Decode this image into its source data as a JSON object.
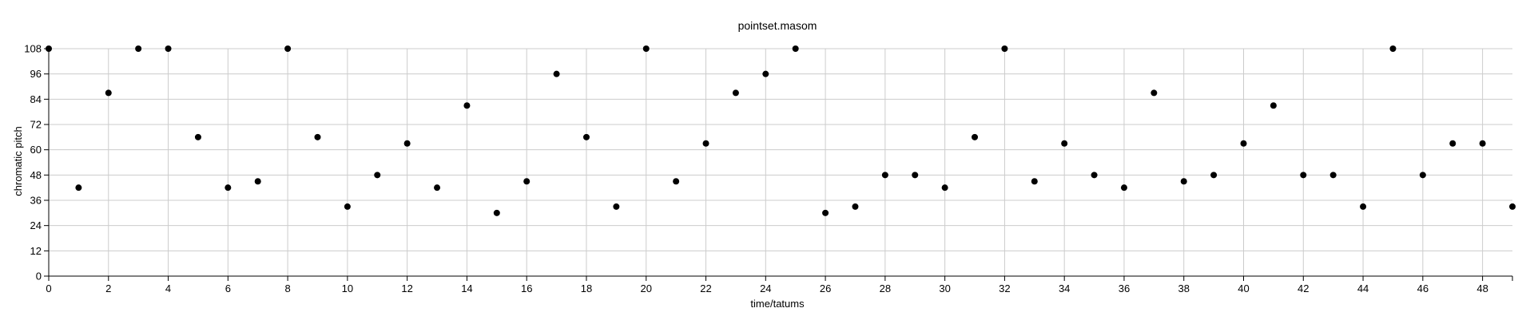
{
  "chart_data": {
    "type": "scatter",
    "title": "pointset.masom",
    "xlabel": "time/tatums",
    "ylabel": "chromatic pitch",
    "xlim": [
      0,
      49
    ],
    "ylim": [
      0,
      108
    ],
    "xticks": [
      0,
      2,
      4,
      6,
      8,
      10,
      12,
      14,
      16,
      18,
      20,
      22,
      24,
      26,
      28,
      30,
      32,
      34,
      36,
      38,
      40,
      42,
      44,
      46,
      48
    ],
    "yticks": [
      0,
      12,
      24,
      36,
      48,
      60,
      72,
      84,
      96,
      108
    ],
    "grid": true,
    "legend": "none",
    "point_color": "#000000",
    "points": [
      {
        "x": 0,
        "y": 108
      },
      {
        "x": 1,
        "y": 42
      },
      {
        "x": 2,
        "y": 87
      },
      {
        "x": 3,
        "y": 108
      },
      {
        "x": 4,
        "y": 108
      },
      {
        "x": 5,
        "y": 66
      },
      {
        "x": 6,
        "y": 42
      },
      {
        "x": 7,
        "y": 45
      },
      {
        "x": 8,
        "y": 108
      },
      {
        "x": 9,
        "y": 66
      },
      {
        "x": 10,
        "y": 33
      },
      {
        "x": 11,
        "y": 48
      },
      {
        "x": 12,
        "y": 63
      },
      {
        "x": 13,
        "y": 42
      },
      {
        "x": 14,
        "y": 81
      },
      {
        "x": 15,
        "y": 30
      },
      {
        "x": 16,
        "y": 45
      },
      {
        "x": 17,
        "y": 96
      },
      {
        "x": 18,
        "y": 66
      },
      {
        "x": 19,
        "y": 33
      },
      {
        "x": 20,
        "y": 108
      },
      {
        "x": 21,
        "y": 45
      },
      {
        "x": 22,
        "y": 63
      },
      {
        "x": 23,
        "y": 87
      },
      {
        "x": 24,
        "y": 96
      },
      {
        "x": 25,
        "y": 108
      },
      {
        "x": 26,
        "y": 30
      },
      {
        "x": 27,
        "y": 33
      },
      {
        "x": 28,
        "y": 48
      },
      {
        "x": 29,
        "y": 48
      },
      {
        "x": 30,
        "y": 42
      },
      {
        "x": 31,
        "y": 66
      },
      {
        "x": 32,
        "y": 108
      },
      {
        "x": 33,
        "y": 45
      },
      {
        "x": 34,
        "y": 63
      },
      {
        "x": 35,
        "y": 48
      },
      {
        "x": 36,
        "y": 42
      },
      {
        "x": 37,
        "y": 87
      },
      {
        "x": 38,
        "y": 45
      },
      {
        "x": 39,
        "y": 48
      },
      {
        "x": 40,
        "y": 63
      },
      {
        "x": 41,
        "y": 81
      },
      {
        "x": 42,
        "y": 48
      },
      {
        "x": 43,
        "y": 48
      },
      {
        "x": 44,
        "y": 33
      },
      {
        "x": 45,
        "y": 108
      },
      {
        "x": 46,
        "y": 48
      },
      {
        "x": 47,
        "y": 63
      },
      {
        "x": 48,
        "y": 63
      },
      {
        "x": 49,
        "y": 33
      }
    ]
  }
}
